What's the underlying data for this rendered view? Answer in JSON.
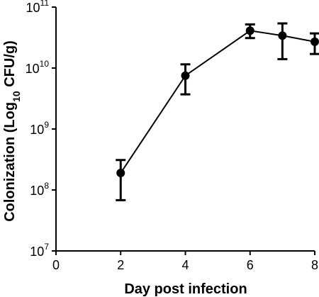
{
  "chart_data": {
    "type": "line",
    "title": "",
    "xlabel": "Day post infection",
    "ylabel": {
      "prefix": "Colonization (Log",
      "subscript": "10",
      "suffix": " CFU/g)"
    },
    "xlim": [
      0,
      8
    ],
    "x_ticks": [
      {
        "value": 0,
        "label": "0"
      },
      {
        "value": 2,
        "label": "2"
      },
      {
        "value": 4,
        "label": "4"
      },
      {
        "value": 6,
        "label": "6"
      },
      {
        "value": 8,
        "label": "8"
      }
    ],
    "y_scale": "log",
    "ylim": [
      10000000,
      100000000000
    ],
    "y_ticks": [
      {
        "value": 10000000,
        "base": "10",
        "exp": "7"
      },
      {
        "value": 100000000,
        "base": "10",
        "exp": "8"
      },
      {
        "value": 1000000000,
        "base": "10",
        "exp": "9"
      },
      {
        "value": 10000000000,
        "base": "10",
        "exp": "10"
      },
      {
        "value": 100000000000,
        "base": "10",
        "exp": "11"
      }
    ],
    "grid": false,
    "series": [
      {
        "points": [
          {
            "x": 2,
            "y": 190000000,
            "err_low": 68000000,
            "err_high": 310000000
          },
          {
            "x": 4,
            "y": 7500000000,
            "err_low": 3700000000,
            "err_high": 11500000000
          },
          {
            "x": 6,
            "y": 41000000000,
            "err_low": 31000000000,
            "err_high": 52000000000
          },
          {
            "x": 7,
            "y": 34000000000,
            "err_low": 14000000000,
            "err_high": 54000000000
          },
          {
            "x": 8,
            "y": 27000000000,
            "err_low": 17000000000,
            "err_high": 37000000000
          }
        ]
      }
    ],
    "colors": {
      "line": "#000000",
      "marker": "#000000",
      "axis": "#000000"
    }
  }
}
